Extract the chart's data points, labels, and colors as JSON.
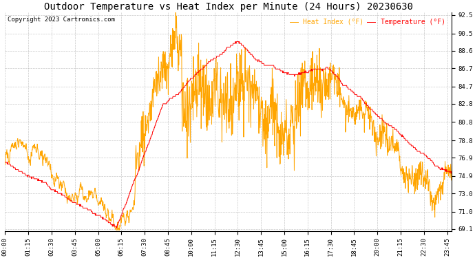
{
  "title": "Outdoor Temperature vs Heat Index per Minute (24 Hours) 20230630",
  "copyright": "Copyright 2023 Cartronics.com",
  "legend_heat": "Heat Index (°F)",
  "legend_temp": "Temperature (°F)",
  "heat_color": "orange",
  "temp_color": "red",
  "ylim_min": 69.1,
  "ylim_max": 92.5,
  "yticks": [
    92.5,
    90.5,
    88.6,
    86.7,
    84.7,
    82.8,
    80.8,
    78.8,
    76.9,
    74.9,
    73.0,
    71.0,
    69.1
  ],
  "background_color": "#ffffff",
  "grid_color": "#b0b0b0",
  "title_fontsize": 10,
  "axis_fontsize": 6.5
}
